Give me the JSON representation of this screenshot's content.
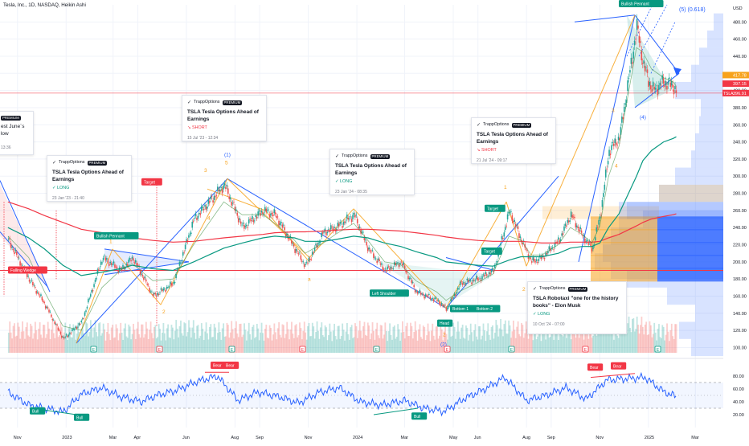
{
  "header": {
    "symbol_line": "Tesla, Inc., 1D, NASDAQ, Heikin Ashi",
    "currency": "USD"
  },
  "colors": {
    "up": "#26a69a",
    "down": "#ef5350",
    "pattern_line": "#2962ff",
    "fib": "#f7a21b",
    "rsi": "#2962ff",
    "hline": "#f23645"
  },
  "chart_data": [
    {
      "type": "candlestick",
      "title": "",
      "xlabel": "",
      "ylabel": "",
      "ylim": [
        92,
        500
      ],
      "x_ticks": [
        "Nov",
        "2023",
        "Mar",
        "Apr",
        "Jun",
        "Aug",
        "Sep",
        "Nov",
        "2024",
        "Mar",
        "May",
        "Jun",
        "Aug",
        "Sep",
        "Nov",
        "2025",
        "Mar"
      ],
      "y_ticks": [
        100,
        120,
        140,
        160,
        180,
        200,
        220,
        240,
        260,
        280,
        300,
        320,
        340,
        360,
        380,
        400,
        420,
        440,
        460,
        480
      ],
      "price_tags": [
        {
          "label": "417.78",
          "color": "#f7a21b"
        },
        {
          "label": "397.15",
          "color": "#f23645"
        },
        {
          "label": "396.91",
          "color": "#f23645",
          "name": "TSLA"
        }
      ],
      "price_path": {
        "dates": [
          "2022-10-20",
          "2022-11-15",
          "2022-12-05",
          "2022-12-28",
          "2023-01-20",
          "2023-02-15",
          "2023-03-10",
          "2023-03-25",
          "2023-04-20",
          "2023-05-15",
          "2023-06-10",
          "2023-07-18",
          "2023-08-10",
          "2023-09-05",
          "2023-09-20",
          "2023-10-15",
          "2023-10-28",
          "2023-11-20",
          "2023-12-05",
          "2023-12-28",
          "2024-01-15",
          "2024-02-05",
          "2024-02-25",
          "2024-03-15",
          "2024-04-10",
          "2024-04-22",
          "2024-05-10",
          "2024-06-01",
          "2024-06-20",
          "2024-07-10",
          "2024-07-25",
          "2024-08-07",
          "2024-08-20",
          "2024-09-10",
          "2024-09-25",
          "2024-10-10",
          "2024-10-22",
          "2024-11-01",
          "2024-11-12",
          "2024-11-25",
          "2024-12-17",
          "2024-12-25",
          "2025-01-05",
          "2025-01-20",
          "2025-02-01",
          "2025-02-05"
        ],
        "close": [
          225,
          180,
          150,
          110,
          130,
          205,
          190,
          205,
          160,
          175,
          250,
          290,
          240,
          260,
          255,
          215,
          195,
          235,
          240,
          255,
          215,
          190,
          200,
          165,
          155,
          145,
          175,
          180,
          190,
          260,
          225,
          200,
          205,
          225,
          255,
          230,
          215,
          255,
          330,
          345,
          475,
          430,
          400,
          410,
          405,
          397
        ]
      },
      "annotations": {
        "patterns": [
          "Falling Wedge",
          "Bullish Pennant",
          "Bullish Pennant",
          "Left Shoulder",
          "Head",
          "Bottom 1",
          "Bottom 2",
          "Target",
          "Target",
          "Target"
        ],
        "waves": [
          "1",
          "2",
          "3",
          "4",
          "5",
          "(1)",
          "(2)",
          "(4)",
          "a",
          "1",
          "2",
          "3",
          "4",
          "3",
          "4",
          "5",
          "(5) (0.618)"
        ]
      },
      "ema_fast": [
        230,
        205,
        165,
        125,
        120,
        170,
        190,
        198,
        178,
        180,
        220,
        270,
        255,
        255,
        245,
        225,
        210,
        222,
        232,
        245,
        225,
        200,
        197,
        178,
        165,
        155,
        166,
        176,
        186,
        230,
        225,
        208,
        208,
        220,
        240,
        232,
        222,
        242,
        300,
        335,
        450,
        445,
        425,
        415,
        410,
        405
      ],
      "ema_slow": [
        240,
        228,
        215,
        196,
        184,
        188,
        192,
        196,
        192,
        190,
        200,
        216,
        222,
        228,
        230,
        228,
        224,
        224,
        226,
        230,
        228,
        222,
        218,
        212,
        205,
        200,
        198,
        196,
        195,
        202,
        206,
        206,
        206,
        210,
        216,
        218,
        218,
        222,
        240,
        256,
        300,
        318,
        330,
        340,
        344,
        346
      ],
      "ema_long": [
        270,
        262,
        254,
        246,
        238,
        234,
        230,
        228,
        225,
        223,
        224,
        228,
        230,
        232,
        234,
        235,
        235,
        236,
        237,
        238,
        238,
        237,
        236,
        234,
        231,
        229,
        227,
        225,
        224,
        224,
        224,
        223,
        222,
        222,
        223,
        223,
        223,
        224,
        228,
        232,
        242,
        246,
        250,
        253,
        255,
        256
      ]
    },
    {
      "type": "line",
      "title": "",
      "ylim": [
        0,
        100
      ],
      "y_ticks": [
        20,
        40,
        60,
        80
      ],
      "x": [
        "2022-10-20",
        "2022-11-15",
        "2022-12-05",
        "2022-12-28",
        "2023-01-20",
        "2023-02-15",
        "2023-03-10",
        "2023-04-05",
        "2023-04-25",
        "2023-05-20",
        "2023-06-15",
        "2023-07-10",
        "2023-08-05",
        "2023-08-30",
        "2023-09-25",
        "2023-10-20",
        "2023-11-15",
        "2023-12-10",
        "2024-01-05",
        "2024-02-01",
        "2024-03-01",
        "2024-03-25",
        "2024-04-20",
        "2024-05-15",
        "2024-06-10",
        "2024-07-05",
        "2024-08-01",
        "2024-08-25",
        "2024-09-20",
        "2024-10-15",
        "2024-11-10",
        "2024-12-05",
        "2024-12-28",
        "2025-01-20",
        "2025-02-05"
      ],
      "y": [
        55,
        35,
        30,
        24,
        52,
        62,
        48,
        40,
        50,
        58,
        72,
        80,
        42,
        55,
        48,
        38,
        55,
        62,
        40,
        35,
        42,
        30,
        25,
        45,
        60,
        78,
        42,
        50,
        62,
        44,
        74,
        76,
        78,
        56,
        48
      ],
      "divergence_labels": [
        "Bull",
        "Bull",
        "Bear",
        "Bear",
        "Bull",
        "Bear",
        "Bear"
      ]
    }
  ],
  "cards": [
    {
      "brand": "TrappOptions",
      "badge": "PREMIUM",
      "title": "TSLA Tesla Options Ahead of Earnings",
      "direction": "✓ LONG",
      "direction_color": "#089981",
      "time": "23 Jan '23 - 21:40"
    },
    {
      "brand": "TrappOptions",
      "badge": "PREMIUM",
      "title": "TSLA Tesla Options Ahead of Earnings",
      "direction": "↘ SHORT",
      "direction_color": "#f23645",
      "time": "15 Jul '23 - 12:34"
    },
    {
      "brand": "TrappOptions",
      "badge": "PREMIUM",
      "title": "TSLA Tesla Options Ahead of Earnings",
      "direction": "✓ LONG",
      "direction_color": "#089981",
      "time": "23 Jan '24 - 08:35"
    },
    {
      "brand": "TrappOptions",
      "badge": "PREMIUM",
      "title": "TSLA Tesla Options Ahead of Earnings",
      "direction": "↘ SHORT",
      "direction_color": "#f23645",
      "time": "21 Jul '24 - 09:17"
    },
    {
      "brand": "TrappOptions",
      "badge": "PREMIUM",
      "title": "TSLA Robotaxi \"one for the history books\" - Elon Musk",
      "direction": "✓ LONG",
      "direction_color": "#089981",
      "time": "10 Oct '24 - 07:00"
    },
    {
      "brand": "",
      "badge": "PREMIUM",
      "title": "est June´s low",
      "direction": "",
      "direction_color": "#089981",
      "time": "13:36"
    }
  ]
}
